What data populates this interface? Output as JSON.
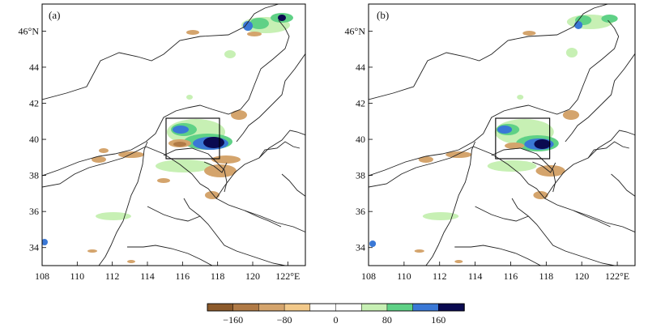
{
  "panels": [
    {
      "label": "(a)",
      "lon_ticks": [
        "108",
        "110",
        "112",
        "114",
        "116",
        "118",
        "120",
        "122°E"
      ],
      "lat_ticks": [
        "34",
        "36",
        "38",
        "40",
        "42",
        "44",
        "46°N"
      ]
    },
    {
      "label": "(b)",
      "lon_ticks": [
        "108",
        "110",
        "112",
        "114",
        "116",
        "118",
        "120",
        "122°E"
      ],
      "lat_ticks": [
        "34",
        "36",
        "38",
        "40",
        "42",
        "44",
        "46°N"
      ]
    }
  ],
  "map_extent": {
    "lon": [
      108,
      123
    ],
    "lat": [
      33,
      47.5
    ]
  },
  "study_box": {
    "lon": [
      115,
      118
    ],
    "lat": [
      39.3,
      41.4
    ]
  },
  "colorbar": {
    "colors": [
      "#8c5a2b",
      "#b07a46",
      "#d4a46c",
      "#f2c98a",
      "#ffffff",
      "#ffffff",
      "#c7f0b4",
      "#5fd186",
      "#3a78d6",
      "#0a0a50"
    ],
    "tick_labels": [
      "−160",
      "−80",
      "0",
      "80",
      "160"
    ],
    "tick_values": [
      -160,
      -80,
      0,
      80,
      160
    ],
    "range": [
      -200,
      200
    ]
  }
}
